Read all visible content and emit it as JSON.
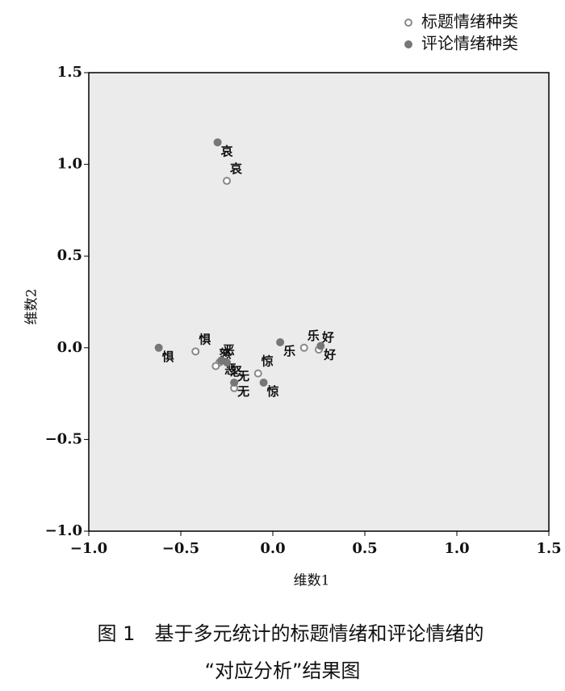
{
  "chart_data": {
    "type": "scatter",
    "xlabel": "维数1",
    "ylabel": "维数2",
    "xlim": [
      -1,
      1.5
    ],
    "ylim": [
      -1,
      1.5
    ],
    "xticks": [
      {
        "value": -1,
        "label": "−1.0"
      },
      {
        "value": -0.5,
        "label": "−0.5"
      },
      {
        "value": 0,
        "label": "0.0"
      },
      {
        "value": 0.5,
        "label": "0.5"
      },
      {
        "value": 1,
        "label": "1.0"
      },
      {
        "value": 1.5,
        "label": "1.5"
      }
    ],
    "yticks": [
      {
        "value": -1,
        "label": "−1.0"
      },
      {
        "value": -0.5,
        "label": "−0.5"
      },
      {
        "value": 0,
        "label": "0.0"
      },
      {
        "value": 0.5,
        "label": "0.5"
      },
      {
        "value": 1,
        "label": "1.0"
      },
      {
        "value": 1.5,
        "label": "1.5"
      }
    ],
    "legend": "top-right",
    "series": [
      {
        "name": "标题情绪种类",
        "color": "#888888",
        "marker": "open",
        "labels": [
          "哀",
          "惧",
          "乐",
          "好",
          "恶",
          "怒",
          "无",
          "惊"
        ],
        "x": [
          -0.25,
          -0.42,
          0.17,
          0.25,
          -0.29,
          -0.31,
          -0.21,
          -0.08
        ],
        "y": [
          0.91,
          -0.02,
          0.0,
          -0.01,
          -0.08,
          -0.1,
          -0.22,
          -0.14
        ]
      },
      {
        "name": "评论情绪种类",
        "color": "#777777",
        "marker": "filled",
        "labels": [
          "哀",
          "惧",
          "乐",
          "好",
          "恶",
          "怒",
          "无",
          "惊"
        ],
        "x": [
          -0.3,
          -0.62,
          0.04,
          0.26,
          -0.28,
          -0.25,
          -0.21,
          -0.05
        ],
        "y": [
          1.12,
          0.0,
          0.03,
          0.01,
          -0.07,
          -0.08,
          -0.19,
          -0.19
        ]
      }
    ]
  },
  "caption": [
    "图 1　基于多元统计的标题情绪和评论情绪的",
    "“对应分析”结果图"
  ]
}
